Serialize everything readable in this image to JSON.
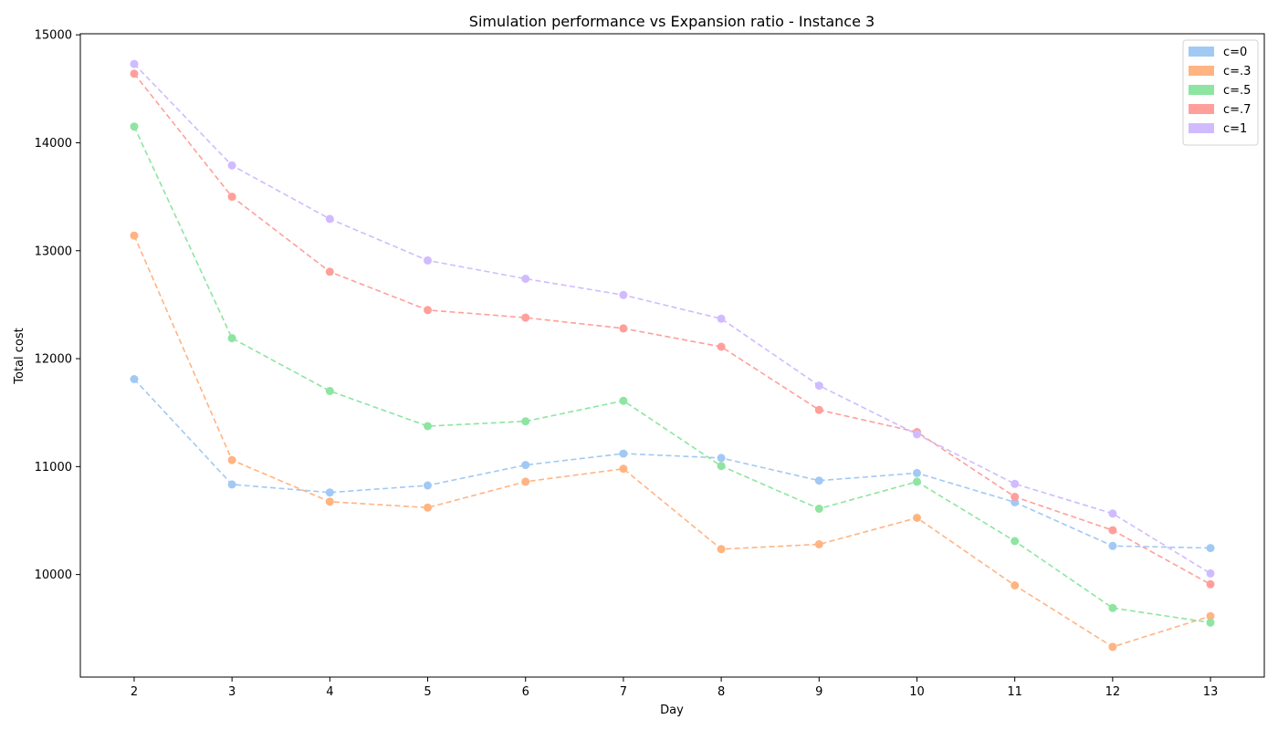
{
  "chart_data": {
    "type": "line",
    "title": "Simulation performance vs Expansion ratio - Instance 3",
    "xlabel": "Day",
    "ylabel": "Total cost",
    "x": [
      2,
      3,
      4,
      5,
      6,
      7,
      8,
      9,
      10,
      11,
      12,
      13
    ],
    "xlim": [
      1.45,
      13.55
    ],
    "ylim": [
      9050,
      15010
    ],
    "yticks": [
      10000,
      11000,
      12000,
      13000,
      14000,
      15000
    ],
    "grid": false,
    "legend_position": "top-right",
    "line_style": "dashed",
    "marker": "circle",
    "series": [
      {
        "name": "c=0",
        "color": "#a1c9f4",
        "values": [
          11810,
          10835,
          10760,
          10825,
          11015,
          11120,
          11080,
          10870,
          10940,
          10670,
          10265,
          10245
        ]
      },
      {
        "name": "c=.3",
        "color": "#ffb482",
        "values": [
          13140,
          11060,
          10675,
          10620,
          10860,
          10980,
          10235,
          10280,
          10525,
          9900,
          9330,
          9615
        ]
      },
      {
        "name": "c=.5",
        "color": "#8de5a1",
        "values": [
          14150,
          12190,
          11700,
          11375,
          11420,
          11610,
          11005,
          10610,
          10860,
          10310,
          9690,
          9555
        ]
      },
      {
        "name": "c=.7",
        "color": "#ff9f9b",
        "values": [
          14640,
          13500,
          12805,
          12450,
          12380,
          12280,
          12110,
          11525,
          11320,
          10720,
          10410,
          9910
        ]
      },
      {
        "name": "c=1",
        "color": "#d0bbff",
        "values": [
          14730,
          13790,
          13295,
          12910,
          12740,
          12590,
          12370,
          11750,
          11300,
          10840,
          10565,
          10010
        ]
      }
    ]
  }
}
